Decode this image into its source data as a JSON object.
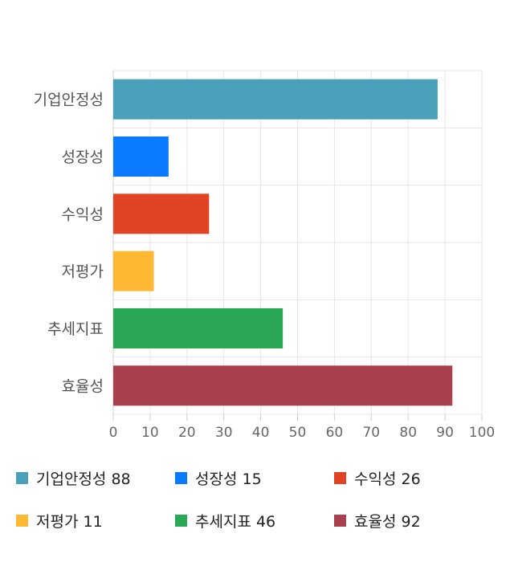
{
  "chart_data": {
    "type": "bar",
    "orientation": "horizontal",
    "categories": [
      "기업안정성",
      "성장성",
      "수익성",
      "저평가",
      "추세지표",
      "효율성"
    ],
    "values": [
      88,
      15,
      26,
      11,
      46,
      92
    ],
    "colors": [
      "#4aa0b8",
      "#0a7aff",
      "#e04424",
      "#ffb834",
      "#2aa856",
      "#a8404e"
    ],
    "xlim": [
      0,
      100
    ],
    "xticks": [
      0,
      10,
      20,
      30,
      40,
      50,
      60,
      70,
      80,
      90,
      100
    ],
    "grid": true,
    "legend_position": "bottom",
    "legend": [
      {
        "label": "기업안정성 88"
      },
      {
        "label": "성장성 15"
      },
      {
        "label": "수익성 26"
      },
      {
        "label": "저평가 11"
      },
      {
        "label": "추세지표 46"
      },
      {
        "label": "효율성 92"
      }
    ]
  }
}
